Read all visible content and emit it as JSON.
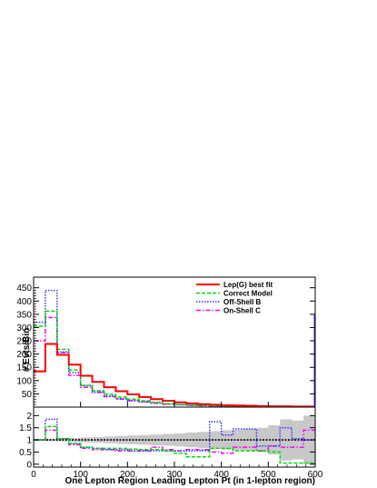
{
  "chart_data": [
    {
      "type": "step-histogram",
      "panel": "upper",
      "ylabel": "# Evts/Bin",
      "xlim": [
        0,
        600
      ],
      "ylim": [
        0,
        490
      ],
      "yticks": [
        50,
        100,
        150,
        200,
        250,
        300,
        350,
        400,
        450
      ],
      "bin_edges": [
        0,
        25,
        50,
        75,
        100,
        125,
        150,
        175,
        200,
        225,
        250,
        275,
        300,
        325,
        350,
        375,
        400,
        425,
        450,
        475,
        500,
        525,
        550,
        575,
        600
      ],
      "legend": {
        "placement": "top-right"
      },
      "series": [
        {
          "name": "Lep(G) best fit",
          "color": "#ff0000",
          "style": "solid",
          "values": [
            135,
            238,
            197,
            160,
            118,
            95,
            75,
            60,
            48,
            38,
            30,
            24,
            18,
            14,
            11,
            9,
            7,
            6,
            5,
            4,
            3,
            3,
            2,
            2
          ]
        },
        {
          "name": "Correct Model",
          "color": "#00dd00",
          "style": "dashed",
          "values": [
            305,
            362,
            218,
            140,
            82,
            62,
            48,
            38,
            30,
            24,
            18,
            13,
            10,
            8,
            6,
            5,
            4,
            4,
            3,
            3,
            2,
            1,
            1,
            1
          ]
        },
        {
          "name": "Off-Shell B",
          "color": "#3333ff",
          "style": "dotted",
          "values": [
            320,
            440,
            208,
            130,
            82,
            58,
            42,
            32,
            25,
            20,
            16,
            12,
            9,
            7,
            6,
            5,
            4,
            4,
            3,
            3,
            2,
            2,
            2,
            2
          ]
        },
        {
          "name": "On-Shell C",
          "color": "#ff00ff",
          "style": "dashdot",
          "values": [
            250,
            338,
            205,
            120,
            75,
            55,
            40,
            30,
            24,
            20,
            15,
            11,
            9,
            7,
            5,
            4,
            4,
            3,
            3,
            2,
            2,
            2,
            1,
            1
          ]
        }
      ]
    },
    {
      "type": "step-ratio",
      "panel": "lower",
      "xlabel": "One Lepton Region Leading Lepton Pt (in 1-lepton region)",
      "xlim": [
        0,
        600
      ],
      "ylim": [
        -0.12,
        2.35
      ],
      "yticks": [
        0,
        0.5,
        1,
        1.5,
        2
      ],
      "ytick_labels": [
        "0",
        "0.5",
        "1",
        "1.5",
        "2"
      ],
      "xticks": [
        0,
        100,
        200,
        300,
        400,
        500,
        600
      ],
      "reference_line": 1,
      "bin_edges": [
        0,
        25,
        50,
        75,
        100,
        125,
        150,
        175,
        200,
        225,
        250,
        275,
        300,
        325,
        350,
        375,
        400,
        425,
        450,
        475,
        500,
        525,
        550,
        575,
        600
      ],
      "uncertainty_band": [
        0.04,
        0.05,
        0.06,
        0.08,
        0.1,
        0.12,
        0.14,
        0.16,
        0.18,
        0.2,
        0.22,
        0.24,
        0.27,
        0.3,
        0.33,
        0.36,
        0.4,
        0.42,
        0.45,
        0.5,
        0.6,
        0.85,
        0.8,
        1.0
      ],
      "series": [
        {
          "name": "Correct Model",
          "color": "#00dd00",
          "style": "dashed",
          "values": [
            1.0,
            1.55,
            1.05,
            0.85,
            0.7,
            0.65,
            0.65,
            0.65,
            0.62,
            0.6,
            0.6,
            0.55,
            0.45,
            0.3,
            0.3,
            0.65,
            0.65,
            0.55,
            0.55,
            0.55,
            0.5,
            0.05,
            0.05,
            0.05
          ]
        },
        {
          "name": "Off-Shell B",
          "color": "#3333ff",
          "style": "dotted",
          "values": [
            1.0,
            1.85,
            1.05,
            0.85,
            0.7,
            0.65,
            0.6,
            0.6,
            0.55,
            0.55,
            0.55,
            0.55,
            0.55,
            0.55,
            0.55,
            1.75,
            1.2,
            1.45,
            1.45,
            0.75,
            0.75,
            1.5,
            1.05,
            1.0
          ]
        },
        {
          "name": "On-Shell C",
          "color": "#ff00ff",
          "style": "dashdot",
          "values": [
            1.0,
            1.4,
            1.05,
            0.8,
            0.65,
            0.6,
            0.6,
            0.55,
            0.55,
            0.55,
            0.7,
            0.6,
            0.55,
            0.6,
            0.6,
            0.5,
            0.45,
            0.7,
            0.7,
            0.55,
            0.75,
            0.7,
            0.7,
            1.4
          ]
        }
      ]
    }
  ]
}
